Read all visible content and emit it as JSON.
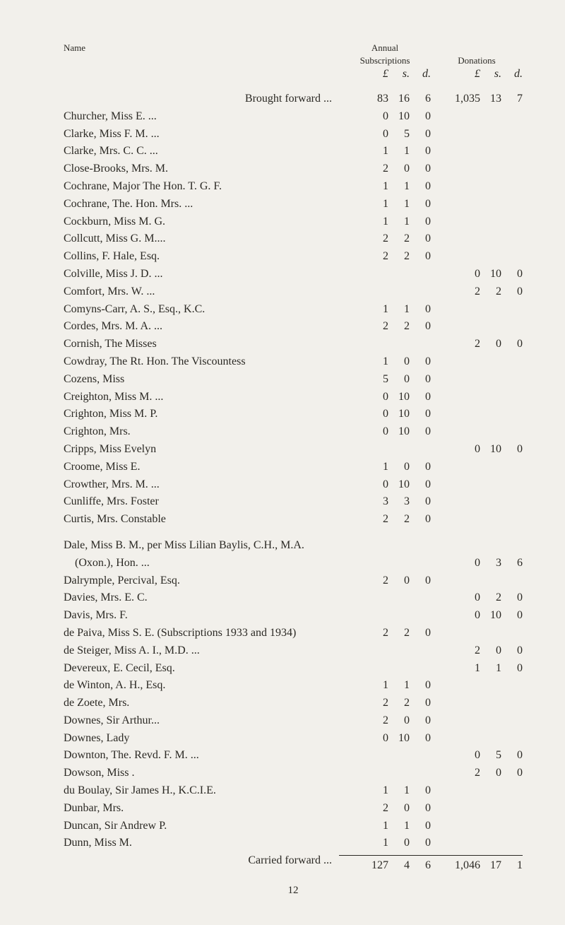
{
  "headers": {
    "name": "Name",
    "annual": "Annual",
    "subscriptions": "Subscriptions",
    "donations": "Donations",
    "pound": "£",
    "s": "s.",
    "d": "d."
  },
  "brought_forward_label": "Brought forward   ...",
  "brought_forward": {
    "sub": [
      "83",
      "16",
      "6"
    ],
    "don": [
      "1,035",
      "13",
      "7"
    ]
  },
  "entries": [
    {
      "label": "Churcher, Miss E. ...",
      "sub": [
        "0",
        "10",
        "0"
      ],
      "don": [
        "",
        "",
        ""
      ]
    },
    {
      "label": "Clarke, Miss F. M. ...",
      "sub": [
        "0",
        "5",
        "0"
      ],
      "don": [
        "",
        "",
        ""
      ]
    },
    {
      "label": "Clarke, Mrs. C. C. ...",
      "sub": [
        "1",
        "1",
        "0"
      ],
      "don": [
        "",
        "",
        ""
      ]
    },
    {
      "label": "Close-Brooks, Mrs. M.",
      "sub": [
        "2",
        "0",
        "0"
      ],
      "don": [
        "",
        "",
        ""
      ]
    },
    {
      "label": "Cochrane, Major The Hon. T. G. F.",
      "sub": [
        "1",
        "1",
        "0"
      ],
      "don": [
        "",
        "",
        ""
      ]
    },
    {
      "label": "Cochrane, The. Hon. Mrs. ...",
      "sub": [
        "1",
        "1",
        "0"
      ],
      "don": [
        "",
        "",
        ""
      ]
    },
    {
      "label": "Cockburn, Miss M. G.",
      "sub": [
        "1",
        "1",
        "0"
      ],
      "don": [
        "",
        "",
        ""
      ]
    },
    {
      "label": "Collcutt, Miss G. M....",
      "sub": [
        "2",
        "2",
        "0"
      ],
      "don": [
        "",
        "",
        ""
      ]
    },
    {
      "label": "Collins, F. Hale, Esq.",
      "sub": [
        "2",
        "2",
        "0"
      ],
      "don": [
        "",
        "",
        ""
      ]
    },
    {
      "label": "Colville, Miss J. D. ...",
      "sub": [
        "",
        "",
        ""
      ],
      "don": [
        "0",
        "10",
        "0"
      ]
    },
    {
      "label": "Comfort, Mrs. W. ...",
      "sub": [
        "",
        "",
        ""
      ],
      "don": [
        "2",
        "2",
        "0"
      ]
    },
    {
      "label": "Comyns-Carr, A. S., Esq., K.C.",
      "sub": [
        "1",
        "1",
        "0"
      ],
      "don": [
        "",
        "",
        ""
      ]
    },
    {
      "label": "Cordes, Mrs. M. A. ...",
      "sub": [
        "2",
        "2",
        "0"
      ],
      "don": [
        "",
        "",
        ""
      ]
    },
    {
      "label": "Cornish, The Misses",
      "sub": [
        "",
        "",
        ""
      ],
      "don": [
        "2",
        "0",
        "0"
      ]
    },
    {
      "label": "Cowdray, The Rt. Hon. The Viscountess",
      "sub": [
        "1",
        "0",
        "0"
      ],
      "don": [
        "",
        "",
        ""
      ]
    },
    {
      "label": "Cozens, Miss",
      "sub": [
        "5",
        "0",
        "0"
      ],
      "don": [
        "",
        "",
        ""
      ]
    },
    {
      "label": "Creighton, Miss M. ...",
      "sub": [
        "0",
        "10",
        "0"
      ],
      "don": [
        "",
        "",
        ""
      ]
    },
    {
      "label": "Crighton, Miss M. P.",
      "sub": [
        "0",
        "10",
        "0"
      ],
      "don": [
        "",
        "",
        ""
      ]
    },
    {
      "label": "Crighton, Mrs.",
      "sub": [
        "0",
        "10",
        "0"
      ],
      "don": [
        "",
        "",
        ""
      ]
    },
    {
      "label": "Cripps, Miss Evelyn",
      "sub": [
        "",
        "",
        ""
      ],
      "don": [
        "0",
        "10",
        "0"
      ]
    },
    {
      "label": "Croome, Miss E.",
      "sub": [
        "1",
        "0",
        "0"
      ],
      "don": [
        "",
        "",
        ""
      ]
    },
    {
      "label": "Crowther, Mrs. M. ...",
      "sub": [
        "0",
        "10",
        "0"
      ],
      "don": [
        "",
        "",
        ""
      ]
    },
    {
      "label": "Cunliffe, Mrs. Foster",
      "sub": [
        "3",
        "3",
        "0"
      ],
      "don": [
        "",
        "",
        ""
      ]
    },
    {
      "label": "Curtis, Mrs. Constable",
      "sub": [
        "2",
        "2",
        "0"
      ],
      "don": [
        "",
        "",
        ""
      ]
    }
  ],
  "entries2_leader": "Dale, Miss B. M., per Miss Lilian Baylis, C.H., M.A.",
  "entries2": [
    {
      "label": "    (Oxon.), Hon. ...",
      "sub": [
        "",
        "",
        ""
      ],
      "don": [
        "0",
        "3",
        "6"
      ]
    },
    {
      "label": "Dalrymple, Percival, Esq.",
      "sub": [
        "2",
        "0",
        "0"
      ],
      "don": [
        "",
        "",
        ""
      ]
    },
    {
      "label": "Davies, Mrs. E. C.",
      "sub": [
        "",
        "",
        ""
      ],
      "don": [
        "0",
        "2",
        "0"
      ]
    },
    {
      "label": "Davis, Mrs. F.",
      "sub": [
        "",
        "",
        ""
      ],
      "don": [
        "0",
        "10",
        "0"
      ]
    },
    {
      "label": "de Paiva, Miss S. E. (Subscriptions 1933 and 1934)",
      "sub": [
        "2",
        "2",
        "0"
      ],
      "don": [
        "",
        "",
        ""
      ]
    },
    {
      "label": "de Steiger, Miss A. I., M.D. ...",
      "sub": [
        "",
        "",
        ""
      ],
      "don": [
        "2",
        "0",
        "0"
      ]
    },
    {
      "label": "Devereux, E. Cecil, Esq.",
      "sub": [
        "",
        "",
        ""
      ],
      "don": [
        "1",
        "1",
        "0"
      ]
    },
    {
      "label": "de Winton, A. H., Esq.",
      "sub": [
        "1",
        "1",
        "0"
      ],
      "don": [
        "",
        "",
        ""
      ]
    },
    {
      "label": "de Zoete, Mrs.",
      "sub": [
        "2",
        "2",
        "0"
      ],
      "don": [
        "",
        "",
        ""
      ]
    },
    {
      "label": "Downes, Sir Arthur...",
      "sub": [
        "2",
        "0",
        "0"
      ],
      "don": [
        "",
        "",
        ""
      ]
    },
    {
      "label": "Downes, Lady",
      "sub": [
        "0",
        "10",
        "0"
      ],
      "don": [
        "",
        "",
        ""
      ]
    },
    {
      "label": "Downton, The. Revd. F. M. ...",
      "sub": [
        "",
        "",
        ""
      ],
      "don": [
        "0",
        "5",
        "0"
      ]
    },
    {
      "label": "Dowson, Miss .",
      "sub": [
        "",
        "",
        ""
      ],
      "don": [
        "2",
        "0",
        "0"
      ]
    },
    {
      "label": "du Boulay, Sir James H., K.C.I.E.",
      "sub": [
        "1",
        "1",
        "0"
      ],
      "don": [
        "",
        "",
        ""
      ]
    },
    {
      "label": "Dunbar, Mrs.",
      "sub": [
        "2",
        "0",
        "0"
      ],
      "don": [
        "",
        "",
        ""
      ]
    },
    {
      "label": "Duncan, Sir Andrew P.",
      "sub": [
        "1",
        "1",
        "0"
      ],
      "don": [
        "",
        "",
        ""
      ]
    },
    {
      "label": "Dunn, Miss M.",
      "sub": [
        "1",
        "0",
        "0"
      ],
      "don": [
        "",
        "",
        ""
      ]
    }
  ],
  "carried_forward_label": "Carried forward   ...",
  "carried_forward": {
    "sub": [
      "127",
      "4",
      "6"
    ],
    "don": [
      "1,046",
      "17",
      "1"
    ]
  },
  "page_number": "12",
  "colors": {
    "background": "#f2f0eb",
    "text": "#2b2924"
  }
}
